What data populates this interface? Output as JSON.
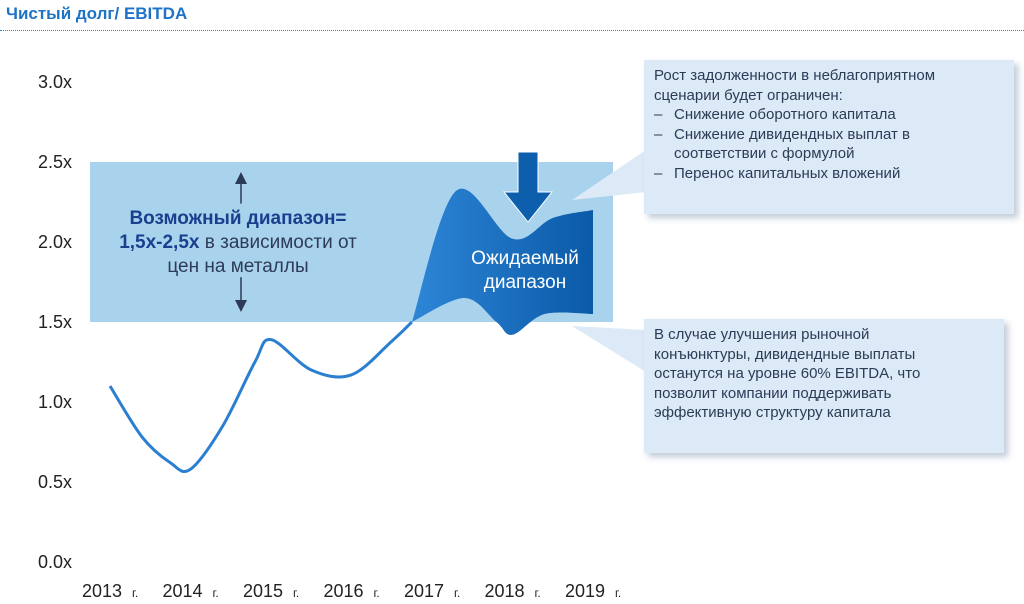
{
  "title": "Чистый долг/ EBITDA",
  "colors": {
    "title": "#1d73c8",
    "band": "#a9d3ec",
    "line": "#2a7fd0",
    "expected_dark": "#0a5aa8",
    "expected_light": "#2e86d6",
    "note_bg": "#dce9f6",
    "text": "#2d3b57"
  },
  "possible_range": {
    "label_bold_1": "Возможный диапазон=",
    "label_bold_2": "1,5x-2,5x",
    "label_rest_1": " в зависимости от",
    "label_rest_2": "цен на металлы"
  },
  "expected_range": {
    "label_line_1": "Ожидаемый",
    "label_line_2": "диапазон"
  },
  "note_top": {
    "lines": [
      "Рост задолженности в неблагоприятном",
      "сценарии будет ограничен:"
    ],
    "bullets": [
      "Снижение оборотного капитала",
      "Снижение дивидендных выплат в соответствии с формулой",
      "Перенос капитальных вложений"
    ]
  },
  "note_bottom": {
    "lines": [
      "В случае улучшения рыночной",
      "конъюнктуры, дивидендные выплаты",
      "останутся на уровне 60% EBITDA, что",
      "позволит компании поддерживать",
      "эффективную структуру капитала"
    ]
  },
  "chart_data": {
    "type": "line",
    "title": "Чистый долг/ EBITDA",
    "x_ticks": [
      "2013",
      "2014",
      "2015",
      "2016",
      "2017",
      "2018",
      "2019"
    ],
    "x_tick_suffix": "г.",
    "y_ticks": [
      "0.0x",
      "0.5x",
      "1.0x",
      "1.5x",
      "2.0x",
      "2.5x",
      "3.0x"
    ],
    "ylim": [
      0,
      3.0
    ],
    "grid": false,
    "series": [
      {
        "x": [
          2013,
          2013.4,
          2013.75,
          2014,
          2014.4,
          2014.8,
          2015,
          2015.5,
          2016,
          2016.5,
          2016.75
        ],
        "values": [
          1.1,
          0.78,
          0.62,
          0.58,
          0.85,
          1.25,
          1.39,
          1.2,
          1.17,
          1.38,
          1.5
        ]
      }
    ],
    "band": {
      "from": 1.5,
      "to": 2.5,
      "x_from": 2013,
      "x_to": 2019
    },
    "expected_range": {
      "upper": [
        [
          2016.75,
          1.5
        ],
        [
          2017.3,
          2.32
        ],
        [
          2018,
          2.02
        ],
        [
          2018.5,
          2.15
        ],
        [
          2019,
          2.2
        ]
      ],
      "lower": [
        [
          2016.75,
          1.5
        ],
        [
          2017.4,
          1.65
        ],
        [
          2017.8,
          1.5
        ],
        [
          2018,
          1.42
        ],
        [
          2018.4,
          1.55
        ],
        [
          2019,
          1.55
        ]
      ]
    }
  }
}
